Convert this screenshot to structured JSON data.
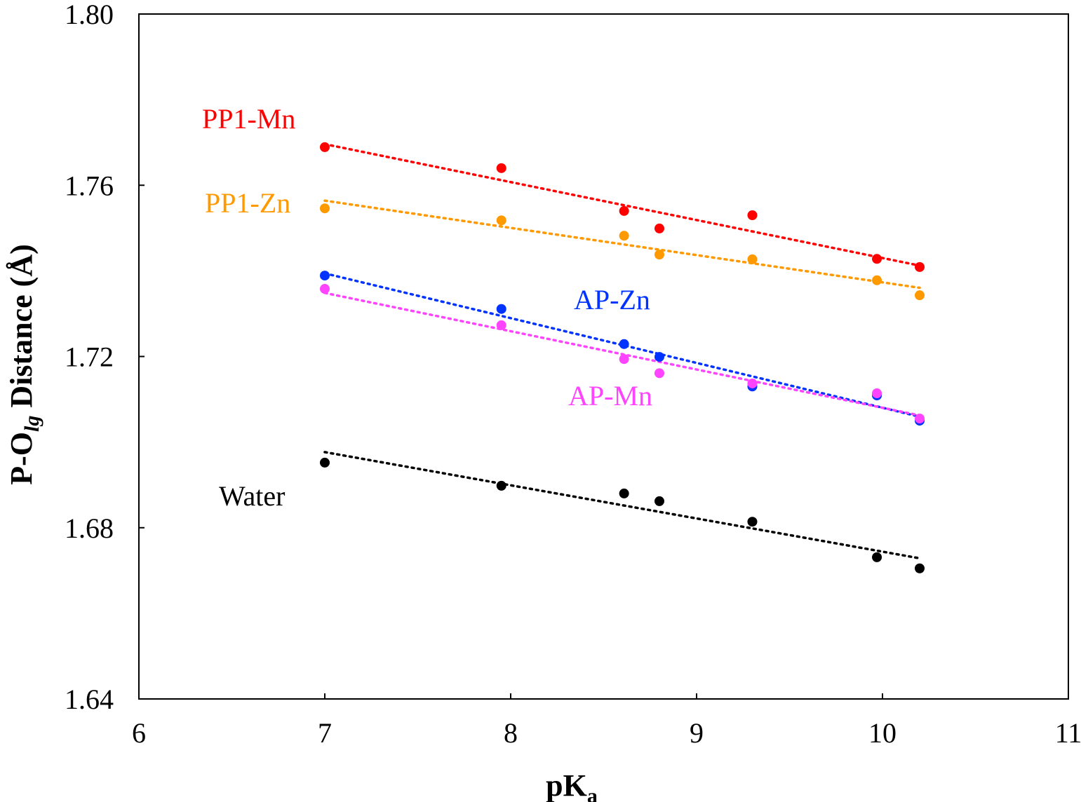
{
  "chart_data": {
    "type": "scatter",
    "title": "",
    "xlabel": {
      "main": "pK",
      "sub": "a"
    },
    "ylabel": {
      "pre": "P-O",
      "sub": "lg",
      "post": " Distance (Å)"
    },
    "xlim": [
      6,
      11
    ],
    "ylim": [
      1.64,
      1.8
    ],
    "xticks": [
      "6",
      "7",
      "8",
      "9",
      "10",
      "11"
    ],
    "yticks": [
      "1.64",
      "1.68",
      "1.72",
      "1.76",
      "1.80"
    ],
    "grid": false,
    "x": [
      7.0,
      7.95,
      8.61,
      8.8,
      9.3,
      9.97,
      10.2
    ],
    "series": [
      {
        "name": "PP1-Mn",
        "color": "#ff0000",
        "trendline": "linear dotted",
        "values": [
          1.7689,
          1.764,
          1.754,
          1.7499,
          1.753,
          1.7428,
          1.7409
        ]
      },
      {
        "name": "PP1-Zn",
        "color": "#ff9900",
        "trendline": "linear dotted",
        "values": [
          1.7546,
          1.7518,
          1.7482,
          1.7438,
          1.7427,
          1.7378,
          1.7343
        ]
      },
      {
        "name": "AP-Zn",
        "color": "#0033ff",
        "trendline": "linear dotted",
        "values": [
          1.7389,
          1.7311,
          1.7229,
          1.7199,
          1.713,
          1.7109,
          1.705
        ]
      },
      {
        "name": "AP-Mn",
        "color": "#ff44ff",
        "trendline": "linear dotted",
        "values": [
          1.7358,
          1.7273,
          1.7194,
          1.7161,
          1.7137,
          1.7114,
          1.7055
        ]
      },
      {
        "name": "Water",
        "color": "#000000",
        "trendline": "linear dotted",
        "values": [
          1.6952,
          1.6898,
          1.688,
          1.6862,
          1.6814,
          1.6731,
          1.6705
        ]
      }
    ]
  }
}
